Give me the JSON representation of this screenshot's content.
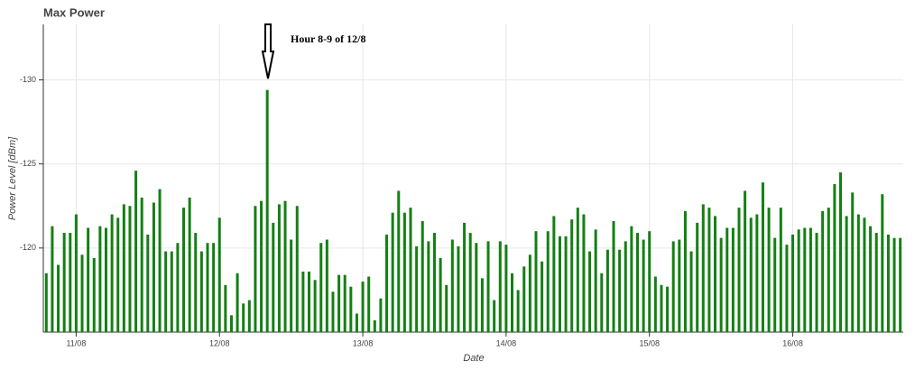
{
  "chart_data": {
    "type": "bar",
    "title": "Max Power",
    "x_label": "Date",
    "y_label": "Power Level [dBm]",
    "annotation": "Hour 8-9 of 12/8",
    "categories": [
      null,
      null,
      null,
      null,
      null,
      "11/08",
      null,
      null,
      null,
      null,
      null,
      null,
      null,
      null,
      null,
      null,
      null,
      null,
      null,
      null,
      null,
      null,
      null,
      null,
      null,
      null,
      null,
      null,
      null,
      "12/08",
      null,
      null,
      null,
      null,
      null,
      null,
      null,
      null,
      null,
      null,
      null,
      null,
      null,
      null,
      null,
      null,
      null,
      null,
      null,
      null,
      null,
      null,
      null,
      "13/08",
      null,
      null,
      null,
      null,
      null,
      null,
      null,
      null,
      null,
      null,
      null,
      null,
      null,
      null,
      null,
      null,
      null,
      null,
      null,
      null,
      null,
      null,
      null,
      "14/08",
      null,
      null,
      null,
      null,
      null,
      null,
      null,
      null,
      null,
      null,
      null,
      null,
      null,
      null,
      null,
      null,
      null,
      null,
      null,
      null,
      null,
      null,
      null,
      "15/08",
      null,
      null,
      null,
      null,
      null,
      null,
      null,
      null,
      null,
      null,
      null,
      null,
      null,
      null,
      null,
      null,
      null,
      null,
      null,
      null,
      null,
      null,
      null,
      "16/08",
      null,
      null,
      null,
      null,
      null,
      null,
      null,
      null,
      null,
      null,
      null,
      null,
      null,
      null,
      null,
      null,
      null,
      null
    ],
    "values": [
      -118.5,
      -121.3,
      -119.0,
      -120.9,
      -120.9,
      -122.0,
      -119.6,
      -121.2,
      -119.4,
      -121.3,
      -121.2,
      -122.0,
      -121.8,
      -122.6,
      -122.5,
      -124.6,
      -123.0,
      -120.8,
      -122.7,
      -123.5,
      -119.8,
      -119.8,
      -120.3,
      -122.4,
      -123.0,
      -120.9,
      -119.8,
      -120.3,
      -120.3,
      -121.8,
      -117.8,
      -116.0,
      -118.5,
      -116.7,
      -116.9,
      -122.5,
      -122.8,
      -129.4,
      -121.5,
      -122.6,
      -122.8,
      -120.5,
      -122.5,
      -118.6,
      -118.6,
      -118.1,
      -120.3,
      -120.5,
      -117.4,
      -118.4,
      -118.4,
      -117.7,
      -116.1,
      -118.0,
      -118.3,
      -115.7,
      -117.0,
      -120.8,
      -122.1,
      -123.4,
      -122.1,
      -122.4,
      -120.1,
      -121.6,
      -120.4,
      -120.9,
      -119.4,
      -117.8,
      -120.5,
      -120.1,
      -121.5,
      -120.9,
      -120.3,
      -118.2,
      -120.4,
      -116.9,
      -120.4,
      -120.2,
      -118.5,
      -117.5,
      -118.9,
      -119.6,
      -121.0,
      -119.2,
      -121.0,
      -121.9,
      -120.7,
      -120.7,
      -121.7,
      -122.4,
      -122.0,
      -119.8,
      -121.1,
      -118.5,
      -119.9,
      -121.6,
      -119.9,
      -120.4,
      -121.3,
      -120.9,
      -120.5,
      -121.0,
      -118.3,
      -117.8,
      -117.7,
      -120.4,
      -120.5,
      -122.2,
      -119.8,
      -121.5,
      -122.6,
      -122.4,
      -121.9,
      -120.6,
      -121.2,
      -121.2,
      -122.4,
      -123.4,
      -121.8,
      -122.0,
      -123.9,
      -122.4,
      -120.6,
      -122.4,
      -120.2,
      -120.8,
      -121.1,
      -121.2,
      -121.2,
      -120.9,
      -122.2,
      -122.4,
      -123.8,
      -124.5,
      -121.9,
      -123.3,
      -122.0,
      -121.8,
      -121.3,
      -120.9,
      -123.2,
      -120.8,
      -120.6,
      -120.6
    ],
    "color": "#138013",
    "ylim": [
      -115,
      -133.3
    ],
    "yticks": [
      -130,
      -125,
      -120
    ],
    "grid": true
  }
}
